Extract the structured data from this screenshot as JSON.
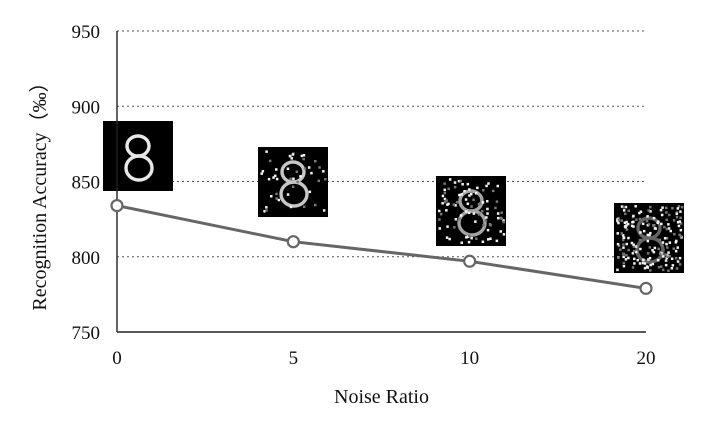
{
  "chart_data": {
    "type": "line",
    "categories": [
      "0",
      "5",
      "10",
      "20"
    ],
    "series": [
      {
        "values": [
          834,
          810,
          797,
          779
        ],
        "color": "#666666"
      }
    ],
    "xlabel": "Noise Ratio",
    "ylabel": "Recognition Accuracy（‰）",
    "ylim": [
      750,
      950
    ],
    "yticks": [
      "750",
      "800",
      "850",
      "900",
      "950"
    ],
    "grid": true,
    "grid_style": "dotted",
    "thumbnails": [
      {
        "category": "0",
        "depicts": "handwritten digit 8",
        "noise": 0
      },
      {
        "category": "5",
        "depicts": "handwritten digit 8",
        "noise": 5
      },
      {
        "category": "10",
        "depicts": "handwritten digit 8",
        "noise": 10
      },
      {
        "category": "20",
        "depicts": "handwritten digit 8",
        "noise": 20
      }
    ]
  }
}
